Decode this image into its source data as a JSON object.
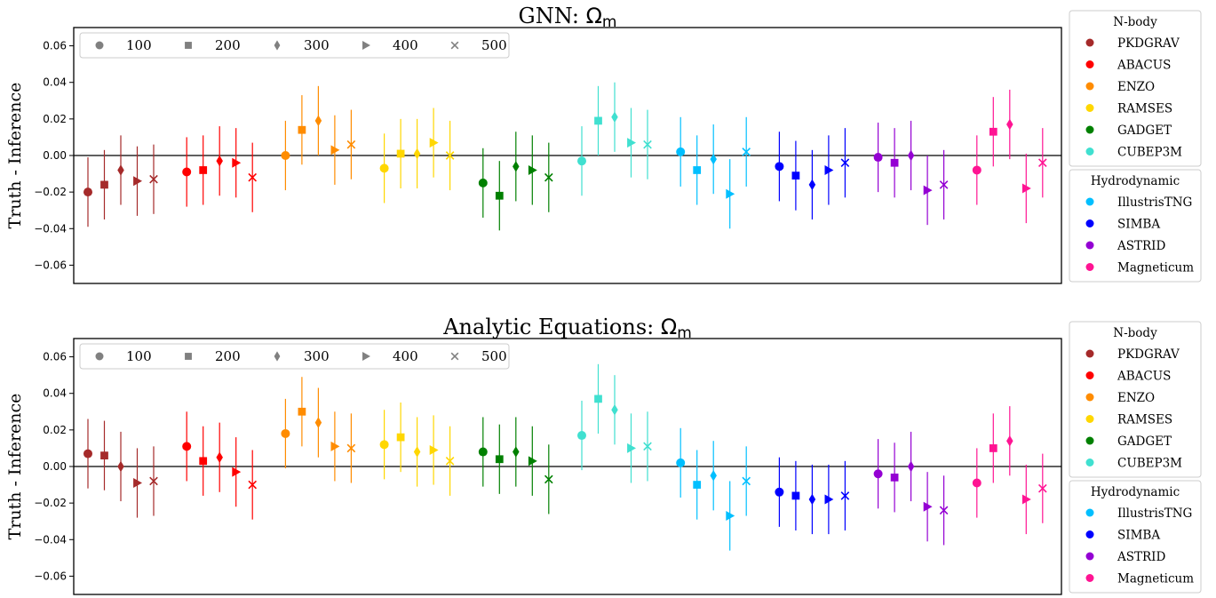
{
  "marker_legend": [
    {
      "label": "100",
      "marker": "circle"
    },
    {
      "label": "200",
      "marker": "square"
    },
    {
      "label": "300",
      "marker": "thin-diamond"
    },
    {
      "label": "400",
      "marker": "triangle-right"
    },
    {
      "label": "500",
      "marker": "x"
    }
  ],
  "legend_groups": [
    {
      "title": "N-body",
      "entries": [
        "PKDGRAV",
        "ABACUS",
        "ENZO",
        "RAMSES",
        "GADGET",
        "CUBEP3M"
      ]
    },
    {
      "title": "Hydrodynamic",
      "entries": [
        "IllustrisTNG",
        "SIMBA",
        "ASTRID",
        "Magneticum"
      ]
    }
  ],
  "colors": {
    "PKDGRAV": "#a52a2a",
    "ABACUS": "#ff0000",
    "ENZO": "#ff8c00",
    "RAMSES": "#ffd700",
    "GADGET": "#008000",
    "CUBEP3M": "#40e0d0",
    "IllustrisTNG": "#00bfff",
    "SIMBA": "#0000ff",
    "ASTRID": "#9400d3",
    "Magneticum": "#ff1493"
  },
  "chart_data": [
    {
      "type": "scatter",
      "title": {
        "prefix": "GNN: ",
        "symbol": "Ω",
        "subscript": "m"
      },
      "ylabel": "Truth - Inference",
      "ylim": [
        -0.07,
        0.07
      ],
      "yticks": [
        "0.06",
        "0.04",
        "0.02",
        "0.00",
        "−0.02",
        "−0.04",
        "−0.06"
      ],
      "ytick_values": [
        0.06,
        0.04,
        0.02,
        0.0,
        -0.02,
        -0.04,
        -0.06
      ],
      "reference_line": 0.0,
      "marker_legend_placement": "upper-left",
      "group_order": [
        "PKDGRAV",
        "ABACUS",
        "ENZO",
        "RAMSES",
        "GADGET",
        "CUBEP3M",
        "IllustrisTNG",
        "SIMBA",
        "ASTRID",
        "Magneticum"
      ],
      "marker_order": [
        "100",
        "200",
        "300",
        "400",
        "500"
      ],
      "values": [
        [
          -0.02,
          -0.016,
          -0.008,
          -0.014,
          -0.013
        ],
        [
          -0.009,
          -0.008,
          -0.003,
          -0.004,
          -0.012
        ],
        [
          0.0,
          0.014,
          0.019,
          0.003,
          0.006
        ],
        [
          -0.007,
          0.001,
          0.001,
          0.007,
          0.0
        ],
        [
          -0.015,
          -0.022,
          -0.006,
          -0.008,
          -0.012
        ],
        [
          -0.003,
          0.019,
          0.021,
          0.007,
          0.006
        ],
        [
          0.002,
          -0.008,
          -0.002,
          -0.021,
          0.002
        ],
        [
          -0.006,
          -0.011,
          -0.016,
          -0.008,
          -0.004
        ],
        [
          -0.001,
          -0.004,
          0.0,
          -0.019,
          -0.016
        ],
        [
          -0.008,
          0.013,
          0.017,
          -0.018,
          -0.004
        ]
      ],
      "errors": 0.019
    },
    {
      "type": "scatter",
      "title": {
        "prefix": "Analytic Equations: ",
        "symbol": "Ω",
        "subscript": "m"
      },
      "ylabel": "Truth - Inference",
      "ylim": [
        -0.07,
        0.07
      ],
      "yticks": [
        "0.06",
        "0.04",
        "0.02",
        "0.00",
        "−0.02",
        "−0.04",
        "−0.06"
      ],
      "ytick_values": [
        0.06,
        0.04,
        0.02,
        0.0,
        -0.02,
        -0.04,
        -0.06
      ],
      "reference_line": 0.0,
      "marker_legend_placement": "upper-left",
      "group_order": [
        "PKDGRAV",
        "ABACUS",
        "ENZO",
        "RAMSES",
        "GADGET",
        "CUBEP3M",
        "IllustrisTNG",
        "SIMBA",
        "ASTRID",
        "Magneticum"
      ],
      "marker_order": [
        "100",
        "200",
        "300",
        "400",
        "500"
      ],
      "values": [
        [
          0.007,
          0.006,
          0.0,
          -0.009,
          -0.008
        ],
        [
          0.011,
          0.003,
          0.005,
          -0.003,
          -0.01
        ],
        [
          0.018,
          0.03,
          0.024,
          0.011,
          0.01
        ],
        [
          0.012,
          0.016,
          0.008,
          0.009,
          0.003
        ],
        [
          0.008,
          0.004,
          0.008,
          0.003,
          -0.007
        ],
        [
          0.017,
          0.037,
          0.031,
          0.01,
          0.011
        ],
        [
          0.002,
          -0.01,
          -0.005,
          -0.027,
          -0.008
        ],
        [
          -0.014,
          -0.016,
          -0.018,
          -0.018,
          -0.016
        ],
        [
          -0.004,
          -0.006,
          0.0,
          -0.022,
          -0.024
        ],
        [
          -0.009,
          0.01,
          0.014,
          -0.018,
          -0.012
        ]
      ],
      "errors": 0.019
    }
  ]
}
